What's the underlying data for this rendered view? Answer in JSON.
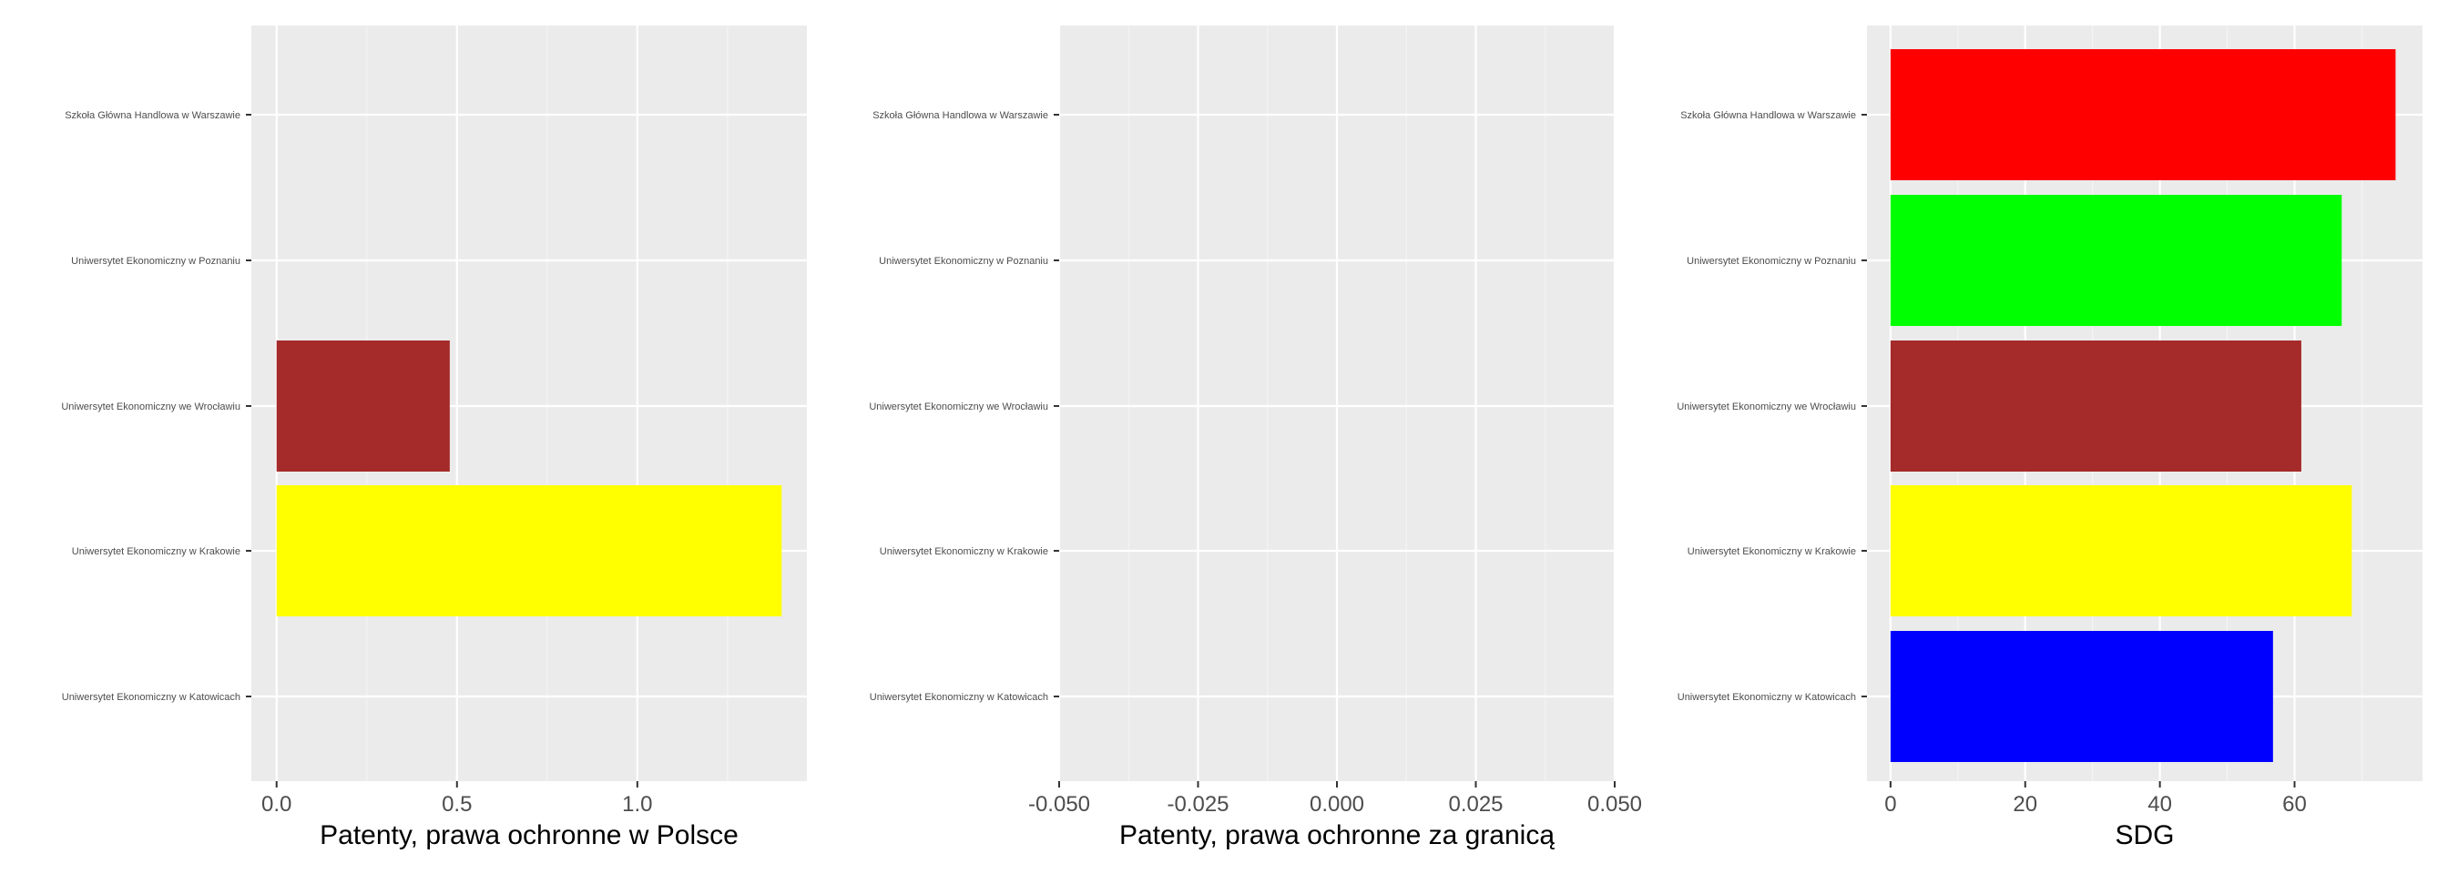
{
  "chart_data": [
    {
      "type": "bar",
      "orientation": "horizontal",
      "categories": [
        "Szkoła Główna Handlowa w Warszawie",
        "Uniwersytet Ekonomiczny w Poznaniu",
        "Uniwersytet Ekonomiczny we Wrocławiu",
        "Uniwersytet Ekonomiczny w Krakowie",
        "Uniwersytet Ekonomiczny w Katowicach"
      ],
      "values": [
        0,
        0,
        0.48,
        1.4,
        0
      ],
      "colors": [
        "#ff0000",
        "#00ff00",
        "#a52a2a",
        "#ffff00",
        "#0000ff"
      ],
      "xlabel": "Patenty, prawa ochronne w Polsce",
      "xlim": [
        -0.07,
        1.47
      ],
      "xticks": [
        0,
        0.5,
        1.0
      ],
      "xtick_labels": [
        "0.0",
        "0.5",
        "1.0"
      ],
      "grid": true
    },
    {
      "type": "bar",
      "orientation": "horizontal",
      "categories": [
        "Szkoła Główna Handlowa w Warszawie",
        "Uniwersytet Ekonomiczny w Poznaniu",
        "Uniwersytet Ekonomiczny we Wrocławiu",
        "Uniwersytet Ekonomiczny w Krakowie",
        "Uniwersytet Ekonomiczny w Katowicach"
      ],
      "values": [
        0,
        0,
        0,
        0,
        0
      ],
      "colors": [
        "#ff0000",
        "#00ff00",
        "#a52a2a",
        "#ffff00",
        "#0000ff"
      ],
      "xlabel": "Patenty, prawa ochronne za granicą",
      "xlim": [
        -0.05,
        0.05
      ],
      "xticks": [
        -0.05,
        -0.025,
        0,
        0.025,
        0.05
      ],
      "xtick_labels": [
        "-0.050",
        "-0.025",
        "0.000",
        "0.025",
        "0.050"
      ],
      "grid": true
    },
    {
      "type": "bar",
      "orientation": "horizontal",
      "categories": [
        "Szkoła Główna Handlowa w Warszawie",
        "Uniwersytet Ekonomiczny w Poznaniu",
        "Uniwersytet Ekonomiczny we Wrocławiu",
        "Uniwersytet Ekonomiczny w Krakowie",
        "Uniwersytet Ekonomiczny w Katowicach"
      ],
      "values": [
        75,
        67,
        61,
        68.5,
        56.8
      ],
      "colors": [
        "#ff0000",
        "#00ff00",
        "#a52a2a",
        "#ffff00",
        "#0000ff"
      ],
      "xlabel": "SDG",
      "xlim": [
        -3.5,
        79
      ],
      "xticks": [
        0,
        20,
        40,
        60
      ],
      "xtick_labels": [
        "0",
        "20",
        "40",
        "60"
      ],
      "grid": true
    }
  ]
}
